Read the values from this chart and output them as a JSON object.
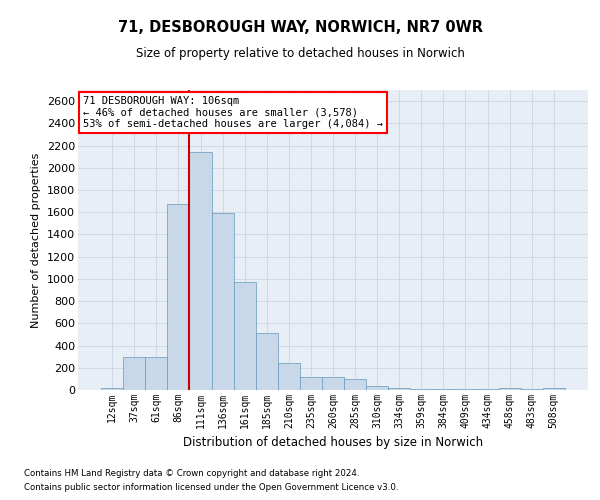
{
  "title": "71, DESBOROUGH WAY, NORWICH, NR7 0WR",
  "subtitle": "Size of property relative to detached houses in Norwich",
  "xlabel": "Distribution of detached houses by size in Norwich",
  "ylabel": "Number of detached properties",
  "footnote1": "Contains HM Land Registry data © Crown copyright and database right 2024.",
  "footnote2": "Contains public sector information licensed under the Open Government Licence v3.0.",
  "annotation_line1": "71 DESBOROUGH WAY: 106sqm",
  "annotation_line2": "← 46% of detached houses are smaller (3,578)",
  "annotation_line3": "53% of semi-detached houses are larger (4,084) →",
  "bar_color": "#c8d8e8",
  "bar_edge_color": "#6699bb",
  "marker_color": "#cc0000",
  "categories": [
    "12sqm",
    "37sqm",
    "61sqm",
    "86sqm",
    "111sqm",
    "136sqm",
    "161sqm",
    "185sqm",
    "210sqm",
    "235sqm",
    "260sqm",
    "285sqm",
    "310sqm",
    "334sqm",
    "359sqm",
    "384sqm",
    "409sqm",
    "434sqm",
    "458sqm",
    "483sqm",
    "508sqm"
  ],
  "values": [
    20,
    295,
    300,
    1670,
    2145,
    1590,
    970,
    510,
    245,
    120,
    115,
    95,
    40,
    20,
    10,
    10,
    5,
    5,
    20,
    5,
    20
  ],
  "ylim": [
    0,
    2700
  ],
  "yticks": [
    0,
    200,
    400,
    600,
    800,
    1000,
    1200,
    1400,
    1600,
    1800,
    2000,
    2200,
    2400,
    2600
  ],
  "grid_color": "#d0d8e8",
  "background_color": "#e8eef5"
}
